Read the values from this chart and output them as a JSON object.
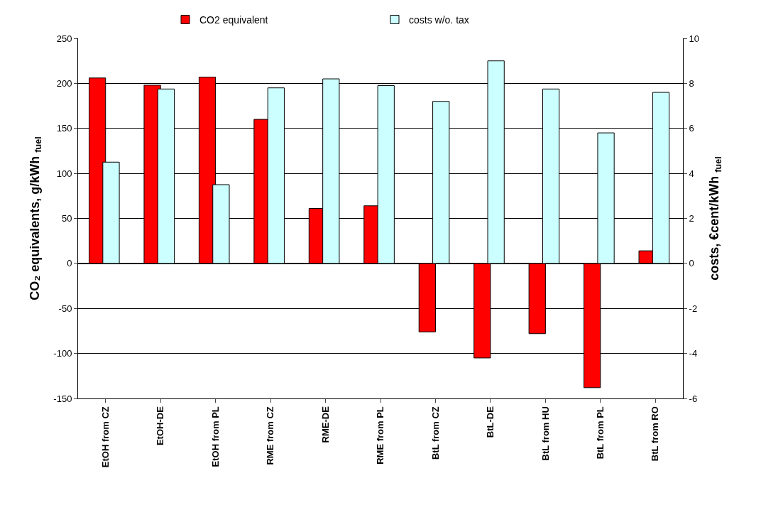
{
  "chart_data": {
    "type": "bar",
    "ylabel": "CO₂ equivalents, g/kWh $_{fuel}$",
    "y2label": "costs, €cent/kWh $_{fuel}$",
    "categories": [
      "EtOH from CZ",
      "EtOH-DE",
      "EtOH from PL",
      "RME from CZ",
      "RME-DE",
      "RME from PL",
      "BtL from CZ",
      "BtL-DE",
      "BtL from HU",
      "BtL from PL",
      "BtL from RO"
    ],
    "series": [
      {
        "name": "CO2 equivalent",
        "color": "#ff0000",
        "values": [
          206,
          198,
          207,
          160,
          61,
          64,
          -76,
          -105,
          -78,
          -138,
          14
        ]
      },
      {
        "name": "costs w/o. tax",
        "color": "#ccffff",
        "axis": "y2",
        "values": [
          4.5,
          7.75,
          3.5,
          7.8,
          8.2,
          7.9,
          7.2,
          9.0,
          7.75,
          5.8,
          7.6
        ]
      }
    ],
    "ylim": [
      -150,
      250
    ],
    "yticks": [
      -150,
      -100,
      -50,
      0,
      50,
      100,
      150,
      200,
      250
    ],
    "y2lim": [
      -6,
      10
    ],
    "y2ticks": [
      -6,
      -4,
      -2,
      0,
      2,
      4,
      6,
      8,
      10
    ],
    "grid": "y",
    "legend": "top"
  }
}
